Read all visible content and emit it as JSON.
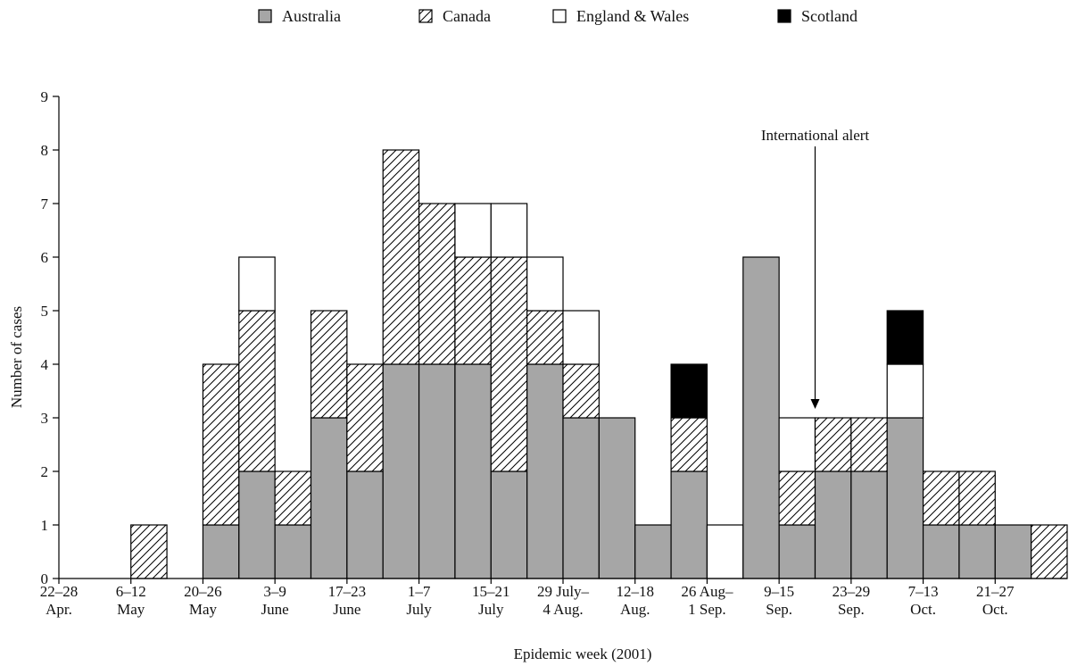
{
  "chart_data": {
    "type": "bar",
    "stacked": true,
    "title": "",
    "xlabel": "Epidemic week (2001)",
    "ylabel": "Number of cases",
    "ylim": [
      0,
      9
    ],
    "yticks": [
      0,
      1,
      2,
      3,
      4,
      5,
      6,
      7,
      8,
      9
    ],
    "categories": [
      "22–28 Apr.",
      "29 Apr.–5 May",
      "6–12 May",
      "13–19 May",
      "20–26 May",
      "27 May–2 June",
      "3–9 June",
      "10–16 June",
      "17–23 June",
      "24–30 June",
      "1–7 July",
      "8–14 July",
      "15–21 July",
      "22–28 July",
      "29 July–4 Aug.",
      "5–11 Aug.",
      "12–18 Aug.",
      "19–25 Aug.",
      "26 Aug–1 Sep.",
      "2–8 Sep.",
      "9–15 Sep.",
      "16–22 Sep.",
      "23–29 Sep.",
      "30 Sep.–6 Oct.",
      "7–13 Oct.",
      "14–20 Oct.",
      "21–27 Oct.",
      "28 Oct.–3 Nov."
    ],
    "tick_labels": [
      {
        "line1": "22–28",
        "line2": "Apr."
      },
      {
        "line1": "6–12",
        "line2": "May"
      },
      {
        "line1": "20–26",
        "line2": "May"
      },
      {
        "line1": "3–9",
        "line2": "June"
      },
      {
        "line1": "17–23",
        "line2": "June"
      },
      {
        "line1": "1–7",
        "line2": "July"
      },
      {
        "line1": "15–21",
        "line2": "July"
      },
      {
        "line1": "29 July–",
        "line2": "4 Aug."
      },
      {
        "line1": "12–18",
        "line2": "Aug."
      },
      {
        "line1": "26 Aug–",
        "line2": "1 Sep."
      },
      {
        "line1": "9–15",
        "line2": "Sep."
      },
      {
        "line1": "23–29",
        "line2": "Sep."
      },
      {
        "line1": "7–13",
        "line2": "Oct."
      },
      {
        "line1": "21–27",
        "line2": "Oct."
      }
    ],
    "series": [
      {
        "name": "Australia",
        "fill": "#a6a6a6",
        "values": [
          0,
          0,
          0,
          0,
          1,
          2,
          1,
          3,
          2,
          4,
          4,
          4,
          2,
          4,
          3,
          3,
          1,
          2,
          0,
          6,
          1,
          2,
          2,
          3,
          1,
          1,
          1,
          0
        ]
      },
      {
        "name": "Canada",
        "fill": "hatch",
        "values": [
          0,
          0,
          1,
          0,
          3,
          3,
          1,
          2,
          2,
          4,
          3,
          2,
          4,
          1,
          1,
          0,
          0,
          1,
          0,
          0,
          1,
          1,
          1,
          0,
          1,
          1,
          0,
          1
        ]
      },
      {
        "name": "England & Wales",
        "fill": "#ffffff",
        "values": [
          0,
          0,
          0,
          0,
          0,
          1,
          0,
          0,
          0,
          0,
          0,
          1,
          1,
          1,
          1,
          0,
          0,
          0,
          1,
          0,
          1,
          0,
          0,
          1,
          0,
          0,
          0,
          0
        ]
      },
      {
        "name": "Scotland",
        "fill": "#000000",
        "values": [
          0,
          0,
          0,
          0,
          0,
          0,
          0,
          0,
          0,
          0,
          0,
          0,
          0,
          0,
          0,
          0,
          0,
          1,
          0,
          0,
          0,
          0,
          0,
          1,
          0,
          0,
          0,
          0
        ]
      }
    ],
    "annotation": {
      "text": "International alert",
      "category_index": 21
    },
    "legend_position": "top",
    "grid": false
  }
}
